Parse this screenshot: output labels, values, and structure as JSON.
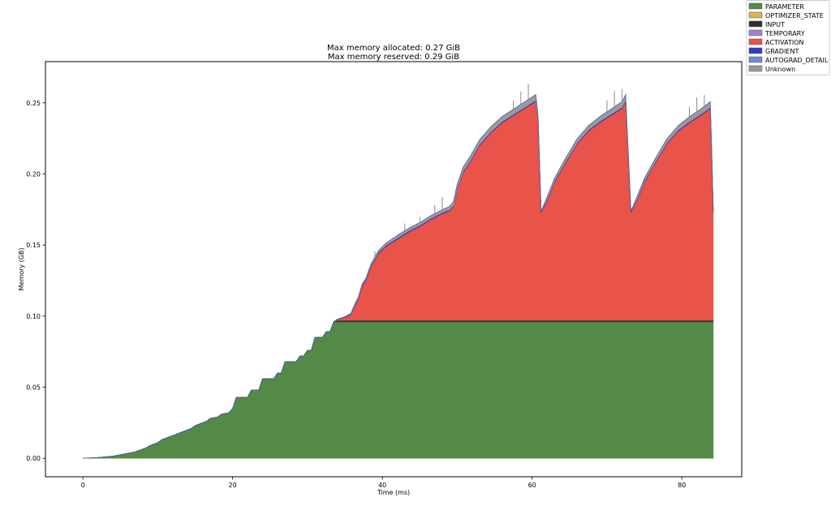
{
  "chart_data": {
    "type": "area",
    "stacked": true,
    "title_lines": [
      "Max memory allocated: 0.27 GiB",
      "Max memory reserved: 0.29 GiB"
    ],
    "xlabel": "Time (ms)",
    "ylabel": "Memory (GB)",
    "xlim": [
      -5,
      88
    ],
    "ylim": [
      -0.013,
      0.279
    ],
    "x_ticks": [
      0,
      20,
      40,
      60,
      80
    ],
    "x_tick_labels": [
      "0",
      "20",
      "40",
      "60",
      "80"
    ],
    "y_ticks": [
      0.0,
      0.05,
      0.1,
      0.15,
      0.2,
      0.25
    ],
    "y_tick_labels": [
      "0.00",
      "0.05",
      "0.10",
      "0.15",
      "0.20",
      "0.25"
    ],
    "grid": false,
    "legend_position": "outside-top-right",
    "legend": [
      {
        "name": "PARAMETER",
        "color": "#548a47"
      },
      {
        "name": "OPTIMIZER_STATE",
        "color": "#d8b45a"
      },
      {
        "name": "INPUT",
        "color": "#2f2f2f"
      },
      {
        "name": "TEMPORARY",
        "color": "#9c86c8"
      },
      {
        "name": "ACTIVATION",
        "color": "#e8534a"
      },
      {
        "name": "GRADIENT",
        "color": "#3838c8"
      },
      {
        "name": "AUTOGRAD_DETAIL",
        "color": "#7088d8"
      },
      {
        "name": "Unknown",
        "color": "#9a9a9a"
      }
    ],
    "series": [
      {
        "name": "PARAMETER",
        "color": "#548a47",
        "points": [
          [
            0,
            0
          ],
          [
            2,
            0.0005
          ],
          [
            4,
            0.0015
          ],
          [
            5,
            0.0025
          ],
          [
            6,
            0.0035
          ],
          [
            7,
            0.0045
          ],
          [
            7.5,
            0.0055
          ],
          [
            8.5,
            0.0075
          ],
          [
            9,
            0.009
          ],
          [
            10,
            0.011
          ],
          [
            10.5,
            0.013
          ],
          [
            11.5,
            0.015
          ],
          [
            12,
            0.016
          ],
          [
            13,
            0.018
          ],
          [
            13.5,
            0.019
          ],
          [
            14.5,
            0.021
          ],
          [
            15,
            0.023
          ],
          [
            16,
            0.025
          ],
          [
            16.5,
            0.026
          ],
          [
            17,
            0.028
          ],
          [
            18,
            0.029
          ],
          [
            18.5,
            0.031
          ],
          [
            19.5,
            0.032
          ],
          [
            20,
            0.035
          ],
          [
            20.5,
            0.043
          ],
          [
            22,
            0.043
          ],
          [
            22.5,
            0.048
          ],
          [
            23.5,
            0.048
          ],
          [
            24,
            0.056
          ],
          [
            25.5,
            0.056
          ],
          [
            26,
            0.06
          ],
          [
            26.5,
            0.06
          ],
          [
            27,
            0.068
          ],
          [
            28.5,
            0.068
          ],
          [
            29,
            0.072
          ],
          [
            29.5,
            0.072
          ],
          [
            30,
            0.076
          ],
          [
            30.5,
            0.076
          ],
          [
            31,
            0.085
          ],
          [
            32,
            0.085
          ],
          [
            32.5,
            0.089
          ],
          [
            33,
            0.089
          ],
          [
            33.5,
            0.096
          ],
          [
            84.2,
            0.096
          ]
        ]
      },
      {
        "name": "INPUT",
        "color": "#2f2f2f",
        "points": [
          [
            33.5,
            0.0
          ],
          [
            34,
            0.001
          ],
          [
            84.2,
            0.001
          ]
        ]
      },
      {
        "name": "ACTIVATION",
        "color": "#e8534a",
        "points": [
          [
            33.5,
            0
          ],
          [
            35,
            0.002
          ],
          [
            35.8,
            0.004
          ],
          [
            36.3,
            0.01
          ],
          [
            36.8,
            0.015
          ],
          [
            37.3,
            0.024
          ],
          [
            37.8,
            0.028
          ],
          [
            38.5,
            0.038
          ],
          [
            39.5,
            0.047
          ],
          [
            40.5,
            0.052
          ],
          [
            42,
            0.057
          ],
          [
            43.5,
            0.062
          ],
          [
            45,
            0.066
          ],
          [
            46.5,
            0.071
          ],
          [
            48,
            0.075
          ],
          [
            49,
            0.077
          ],
          [
            49.5,
            0.08
          ],
          [
            50,
            0.092
          ],
          [
            50.8,
            0.104
          ],
          [
            51.8,
            0.112
          ],
          [
            53,
            0.123
          ],
          [
            54.5,
            0.132
          ],
          [
            56,
            0.139
          ],
          [
            57.5,
            0.144
          ],
          [
            59,
            0.149
          ],
          [
            60.5,
            0.154
          ],
          [
            60.8,
            0.14
          ],
          [
            61.2,
            0.076
          ],
          [
            62,
            0.084
          ],
          [
            63,
            0.097
          ],
          [
            64.5,
            0.111
          ],
          [
            66,
            0.124
          ],
          [
            67.5,
            0.133
          ],
          [
            69,
            0.139
          ],
          [
            70.5,
            0.144
          ],
          [
            72,
            0.149
          ],
          [
            72.5,
            0.154
          ],
          [
            72.8,
            0.12
          ],
          [
            73.2,
            0.076
          ],
          [
            74,
            0.084
          ],
          [
            75,
            0.097
          ],
          [
            76.5,
            0.111
          ],
          [
            78,
            0.124
          ],
          [
            79.5,
            0.133
          ],
          [
            81,
            0.139
          ],
          [
            82.5,
            0.144
          ],
          [
            83.8,
            0.149
          ],
          [
            84,
            0.115
          ],
          [
            84.2,
            0.076
          ]
        ]
      },
      {
        "name": "GRADIENT",
        "color": "#3838c8",
        "points": [
          [
            33.5,
            0
          ],
          [
            37,
            0.0008
          ],
          [
            84.2,
            0.0008
          ]
        ]
      },
      {
        "name": "Unknown",
        "color": "#9a9a9a",
        "points": [
          [
            33.5,
            0
          ],
          [
            38,
            0.001
          ],
          [
            42,
            0.002
          ],
          [
            48,
            0.002
          ],
          [
            50,
            0.003
          ],
          [
            60,
            0.004
          ],
          [
            60.7,
            0.004
          ],
          [
            61.2,
            0
          ],
          [
            62,
            0.002
          ],
          [
            72,
            0.004
          ],
          [
            72.6,
            0.004
          ],
          [
            73.2,
            0
          ],
          [
            74,
            0.002
          ],
          [
            83.8,
            0.004
          ],
          [
            84.2,
            0
          ]
        ],
        "spikes": [
          [
            39,
            0.004
          ],
          [
            43,
            0.005
          ],
          [
            45,
            0.004
          ],
          [
            47,
            0.006
          ],
          [
            48,
            0.009
          ],
          [
            57.5,
            0.006
          ],
          [
            58.5,
            0.009
          ],
          [
            59.5,
            0.011
          ],
          [
            70,
            0.008
          ],
          [
            71,
            0.011
          ],
          [
            72,
            0.009
          ],
          [
            81,
            0.007
          ],
          [
            82,
            0.01
          ],
          [
            83,
            0.008
          ]
        ]
      }
    ]
  }
}
